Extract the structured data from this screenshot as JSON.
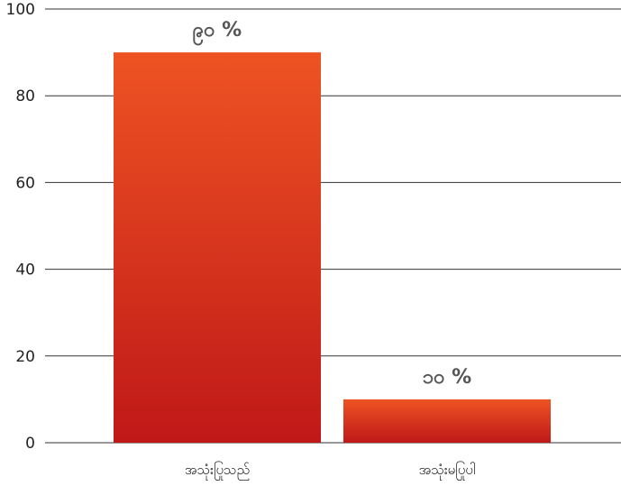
{
  "chart_data": {
    "type": "bar",
    "categories": [
      "အသုံးပြုသည်",
      "အသုံးမပြုပါ"
    ],
    "values": [
      90,
      10
    ],
    "data_labels": [
      "၉၀ %",
      "၁၀ %"
    ],
    "ylim": [
      0,
      100
    ],
    "yticks": [
      0,
      20,
      40,
      60,
      80,
      100
    ],
    "grid": true,
    "colors": {
      "bar_top": "#EE5323",
      "bar_bottom": "#C01818",
      "grid": "#333333",
      "text": "#222222",
      "label": "#555555"
    }
  }
}
